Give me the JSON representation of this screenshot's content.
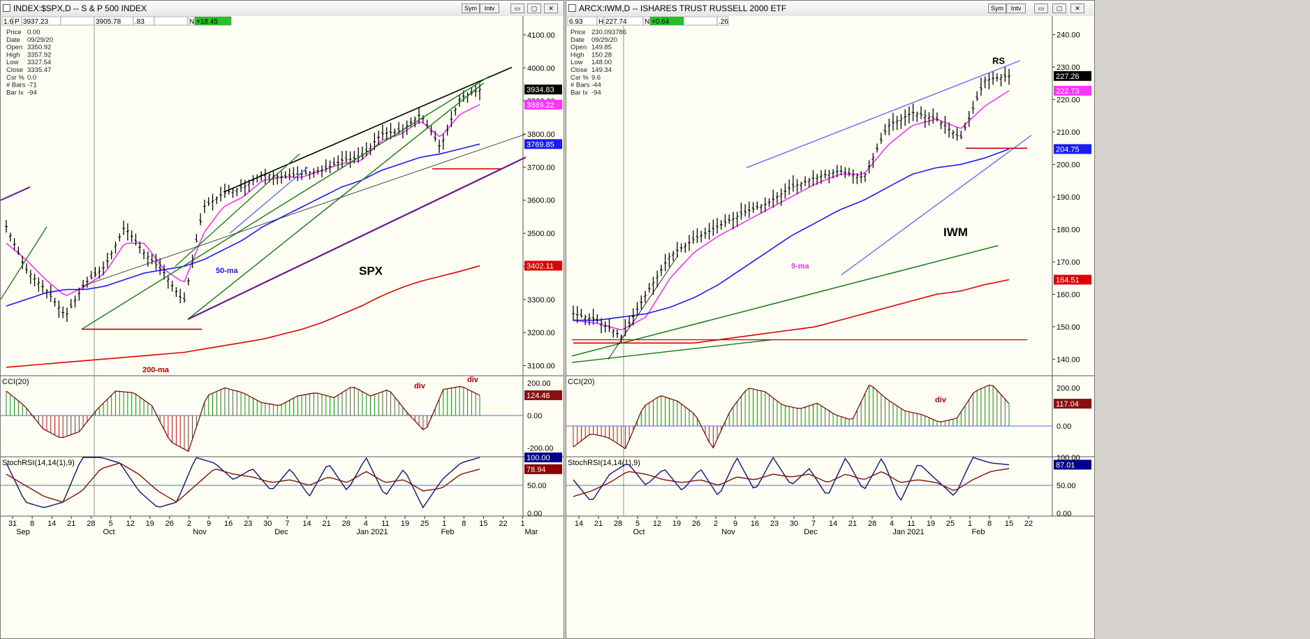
{
  "left_window": {
    "title": "INDEX:$SPX,D -- S & P 500 INDEX",
    "buttons": {
      "sym": "Sym",
      "intv": "Intv",
      "minimize": "▭",
      "restore": "▢",
      "close": "✕"
    },
    "header_fields": [
      "1.65",
      "P",
      "3937.23",
      "",
      "3905.78",
      ".83",
      "",
      "N",
      "+18.45"
    ],
    "info_panel": [
      {
        "label": "Price",
        "value": "0.00"
      },
      {
        "label": "Date",
        "value": "09/29/20"
      },
      {
        "label": "Open",
        "value": "3350.92"
      },
      {
        "label": "High",
        "value": "3357.92"
      },
      {
        "label": "Low",
        "value": "3327.54"
      },
      {
        "label": "Close",
        "value": "3335.47"
      },
      {
        "label": "Csr %",
        "value": "0.0"
      },
      {
        "label": "# Bars",
        "value": "-71"
      },
      {
        "label": "Bar Ix",
        "value": "-94"
      }
    ],
    "chart_label": "SPX",
    "ma50_label": "50-ma",
    "ma200_label": "200-ma",
    "price_ticks": [
      "4100.00",
      "4000.00",
      "3900.00",
      "3800.00",
      "3700.00",
      "3600.00",
      "3500.00",
      "3400.00",
      "3300.00",
      "3200.00",
      "3100.00"
    ],
    "price_badges": [
      {
        "value": "3934.83",
        "color": "#000000"
      },
      {
        "value": "3889.22",
        "color": "#ff33ff"
      },
      {
        "value": "3769.85",
        "color": "#1a1aff"
      },
      {
        "value": "3402.11",
        "color": "#e00000"
      }
    ],
    "cci_title": "CCI(20)",
    "cci_ticks": [
      "200.00",
      "0.00",
      "-200.00"
    ],
    "cci_badge": "124.46",
    "div_labels": [
      "div",
      "div"
    ],
    "stoch_title": "StochRSI(14,14(1),9)",
    "stoch_ticks": [
      "100.00",
      "50.00",
      "0.00"
    ],
    "stoch_badges": [
      {
        "value": "100.00",
        "color": "#00008b"
      },
      {
        "value": "78.94",
        "color": "#8b0000"
      }
    ],
    "x_day_labels": [
      "31",
      "8",
      "14",
      "21",
      "28",
      "5",
      "12",
      "19",
      "26",
      "2",
      "9",
      "16",
      "23",
      "30",
      "7",
      "14",
      "21",
      "28",
      "4",
      "11",
      "19",
      "25",
      "1",
      "8",
      "15",
      "22",
      "1"
    ],
    "x_month_labels": [
      "Sep",
      "Oct",
      "Nov",
      "Dec",
      "Jan 2021",
      "Feb",
      "Mar"
    ]
  },
  "right_window": {
    "title": "ARCX:IWM,D -- ISHARES TRUST RUSSELL 2000 ETF",
    "buttons": {
      "sym": "Sym",
      "intv": "Intv",
      "minimize": "▭",
      "restore": "▢",
      "close": "✕"
    },
    "header_fields": [
      "6.93",
      "H",
      "227.74",
      "N",
      "+0.64",
      "",
      ".26"
    ],
    "info_panel": [
      {
        "label": "Price",
        "value": "230.093786"
      },
      {
        "label": "Date",
        "value": "09/29/20"
      },
      {
        "label": "Open",
        "value": "149.85"
      },
      {
        "label": "High",
        "value": "150.28"
      },
      {
        "label": "Low",
        "value": "148.00"
      },
      {
        "label": "Close",
        "value": "149.34"
      },
      {
        "label": "Csr %",
        "value": "9.6"
      },
      {
        "label": "# Bars",
        "value": "-44"
      },
      {
        "label": "Bar Ix",
        "value": "-94"
      }
    ],
    "chart_label": "IWM",
    "rs_label": "RS",
    "ma9_label": "9-ma",
    "price_ticks": [
      "240.00",
      "230.00",
      "220.00",
      "210.00",
      "200.00",
      "190.00",
      "180.00",
      "170.00",
      "160.00",
      "150.00",
      "140.00"
    ],
    "price_badges": [
      {
        "value": "227.26",
        "color": "#000000"
      },
      {
        "value": "222.73",
        "color": "#ff33ff"
      },
      {
        "value": "204.75",
        "color": "#1a1aff"
      },
      {
        "value": "164.51",
        "color": "#e00000"
      }
    ],
    "cci_title": "CCI(20)",
    "cci_ticks": [
      "200.00",
      "0.00"
    ],
    "cci_badge": "117.04",
    "div_label": "div",
    "stoch_title": "StochRSI(14,14(1),9)",
    "stoch_ticks": [
      "100.00",
      "50.00",
      "0.00"
    ],
    "stoch_badges": [
      {
        "value": "87.01",
        "color": "#00008b"
      }
    ],
    "x_day_labels": [
      "14",
      "21",
      "28",
      "5",
      "12",
      "19",
      "26",
      "2",
      "9",
      "16",
      "23",
      "30",
      "7",
      "14",
      "21",
      "28",
      "4",
      "11",
      "19",
      "25",
      "1",
      "8",
      "15",
      "22"
    ],
    "x_month_labels": [
      "Oct",
      "Nov",
      "Dec",
      "Jan 2021",
      "Feb"
    ]
  },
  "chart_data": [
    {
      "type": "line",
      "title": "INDEX:$SPX,D -- S & P 500 INDEX",
      "x": [
        "Aug 31",
        "Sep 8",
        "Sep 14",
        "Sep 21",
        "Sep 28",
        "Oct 5",
        "Oct 12",
        "Oct 19",
        "Oct 26",
        "Nov 2",
        "Nov 9",
        "Nov 16",
        "Nov 23",
        "Nov 30",
        "Dec 7",
        "Dec 14",
        "Dec 21",
        "Dec 28",
        "Jan 4",
        "Jan 11",
        "Jan 19",
        "Jan 25",
        "Feb 1",
        "Feb 8",
        "Feb 15"
      ],
      "series": [
        {
          "name": "SPX",
          "values": [
            3520,
            3390,
            3330,
            3250,
            3350,
            3400,
            3520,
            3440,
            3380,
            3290,
            3580,
            3620,
            3640,
            3680,
            3670,
            3680,
            3690,
            3720,
            3730,
            3800,
            3810,
            3860,
            3760,
            3910,
            3935
          ]
        },
        {
          "name": "9-ma",
          "values": [
            3470,
            3420,
            3360,
            3310,
            3340,
            3380,
            3470,
            3470,
            3390,
            3350,
            3500,
            3580,
            3610,
            3660,
            3670,
            3670,
            3690,
            3710,
            3720,
            3780,
            3800,
            3840,
            3790,
            3860,
            3889
          ]
        },
        {
          "name": "50-ma",
          "values": [
            3280,
            3300,
            3320,
            3330,
            3330,
            3340,
            3360,
            3380,
            3390,
            3400,
            3420,
            3450,
            3480,
            3520,
            3550,
            3580,
            3610,
            3640,
            3660,
            3690,
            3710,
            3730,
            3740,
            3755,
            3770
          ]
        },
        {
          "name": "200-ma",
          "values": [
            3095,
            3100,
            3105,
            3110,
            3115,
            3120,
            3125,
            3130,
            3135,
            3140,
            3150,
            3160,
            3170,
            3180,
            3195,
            3210,
            3230,
            3255,
            3280,
            3310,
            3335,
            3355,
            3370,
            3385,
            3402
          ]
        }
      ],
      "ylim": [
        3080,
        4140
      ],
      "cci_last": 124.46,
      "stoch_rsi_last": [
        100.0,
        78.94
      ]
    },
    {
      "type": "line",
      "title": "ARCX:IWM,D -- ISHARES TRUST RUSSELL 2000 ETF",
      "x": [
        "Oct 12",
        "Oct 19",
        "Oct 26",
        "Nov 2",
        "Nov 9",
        "Nov 16",
        "Nov 23",
        "Nov 30",
        "Dec 7",
        "Dec 14",
        "Dec 21",
        "Dec 28",
        "Jan 4",
        "Jan 11",
        "Jan 19",
        "Jan 25",
        "Feb 1",
        "Feb 8",
        "Feb 12"
      ],
      "series": [
        {
          "name": "IWM",
          "values": [
            154,
            152,
            147,
            160,
            172,
            177,
            181,
            185,
            188,
            193,
            196,
            198,
            196,
            212,
            216,
            214,
            208,
            226,
            227.26
          ]
        },
        {
          "name": "9-ma",
          "values": [
            152,
            151,
            149,
            153,
            165,
            173,
            178,
            182,
            186,
            190,
            194,
            197,
            197,
            206,
            212,
            214,
            211,
            218,
            222.73
          ]
        },
        {
          "name": "50-ma",
          "values": [
            152,
            152,
            153,
            154,
            156,
            159,
            163,
            168,
            173,
            178,
            182,
            186,
            189,
            193,
            197,
            199,
            200,
            202,
            204.75
          ]
        },
        {
          "name": "200-ma",
          "values": [
            145,
            145,
            145,
            145,
            145,
            145,
            146,
            147,
            148,
            149,
            150,
            152,
            154,
            156,
            158,
            160,
            161,
            163,
            164.51
          ]
        }
      ],
      "ylim": [
        136,
        244
      ],
      "cci_last": 117.04,
      "stoch_rsi_last": [
        87.01
      ]
    }
  ]
}
